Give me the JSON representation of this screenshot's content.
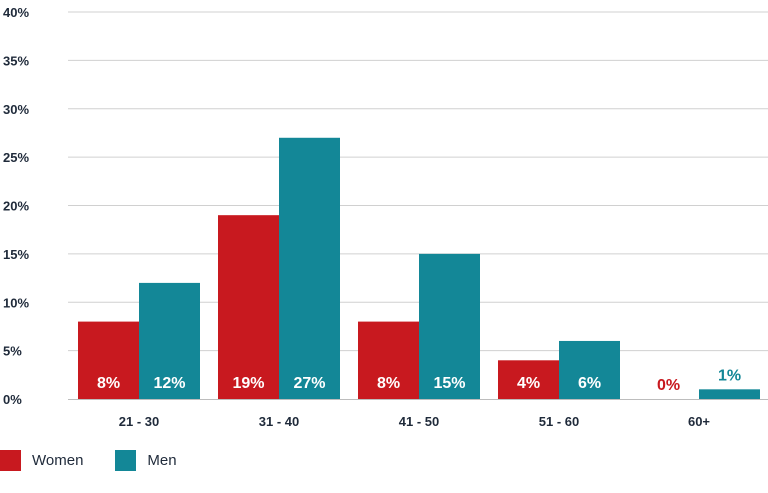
{
  "chart_data": {
    "type": "bar",
    "categories": [
      "21 - 30",
      "31 - 40",
      "41 - 50",
      "51 - 60",
      "60+"
    ],
    "series": [
      {
        "name": "Women",
        "color": "#c8191f",
        "values": [
          8,
          19,
          8,
          4,
          0
        ],
        "labels": [
          "8%",
          "19%",
          "8%",
          "4%",
          "0%"
        ]
      },
      {
        "name": "Men",
        "color": "#138797",
        "values": [
          12,
          27,
          15,
          6,
          1
        ],
        "labels": [
          "12%",
          "27%",
          "15%",
          "6%",
          "1%"
        ]
      }
    ],
    "yticks": [
      "0%",
      "5%",
      "10%",
      "15%",
      "20%",
      "25%",
      "30%",
      "35%",
      "40%"
    ],
    "ylim": [
      0,
      40
    ],
    "grid": true,
    "legend_position": "bottom-left",
    "label_color_inside": "#ffffff",
    "gridline_color": "#d0d0d0"
  }
}
